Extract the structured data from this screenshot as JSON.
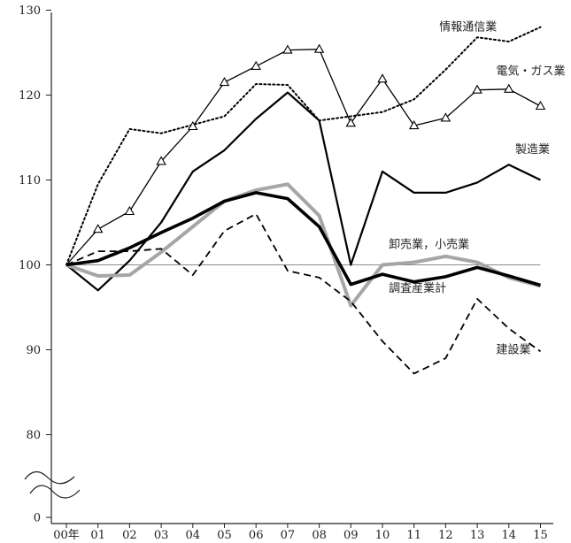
{
  "chart_data": {
    "type": "line",
    "title": "",
    "xlabel": "",
    "ylabel": "",
    "categories": [
      "00年",
      "01",
      "02",
      "03",
      "04",
      "05",
      "06",
      "07",
      "08",
      "09",
      "10",
      "11",
      "12",
      "13",
      "14",
      "15"
    ],
    "y_ticks": [
      "130",
      "120",
      "110",
      "100",
      "90",
      "80",
      "0"
    ],
    "ylim": [
      75,
      130
    ],
    "axis_break": true,
    "baseline": 100,
    "grid": false,
    "series": [
      {
        "name": "情報通信業",
        "style": "dotted",
        "color": "#000000",
        "values": [
          100,
          109.5,
          116,
          115.5,
          116.5,
          117.5,
          121.3,
          121.2,
          117,
          117.5,
          118,
          119.5,
          123,
          126.8,
          126.3,
          128
        ]
      },
      {
        "name": "電気・ガス業",
        "style": "thin-triangle",
        "color": "#000000",
        "values": [
          100,
          104.2,
          106.3,
          112.2,
          116.3,
          121.5,
          123.4,
          125.3,
          125.4,
          116.7,
          121.9,
          116.4,
          117.3,
          120.6,
          120.7,
          118.7
        ]
      },
      {
        "name": "製造業",
        "style": "solid-medium",
        "color": "#000000",
        "values": [
          100,
          97,
          100.5,
          105,
          111,
          113.5,
          117.2,
          120.3,
          117,
          100,
          111,
          108.5,
          108.5,
          109.7,
          111.8,
          110
        ]
      },
      {
        "name": "卸売業，小売業",
        "style": "gray-thick",
        "color": "#a6a6a6",
        "values": [
          100,
          98.7,
          98.8,
          101.5,
          104.5,
          107.5,
          108.8,
          109.5,
          105.8,
          95.2,
          100,
          100.3,
          101,
          100.3,
          98.5,
          97.5
        ]
      },
      {
        "name": "調査産業計",
        "style": "black-thick",
        "color": "#000000",
        "values": [
          100,
          100.5,
          102,
          103.8,
          105.5,
          107.5,
          108.5,
          107.8,
          104.5,
          97.7,
          98.9,
          98,
          98.6,
          99.7,
          98.7,
          97.6
        ]
      },
      {
        "name": "建設業",
        "style": "dashed",
        "color": "#000000",
        "values": [
          100,
          101.6,
          101.6,
          101.9,
          98.8,
          104,
          106,
          99.3,
          98.5,
          95.7,
          91,
          87.2,
          89,
          96,
          92.5,
          89.8
        ]
      }
    ],
    "label_anchor": {
      "情報通信業": [
        11.8,
        127.6
      ],
      "電気・ガス業": [
        13.6,
        122.4
      ],
      "製造業": [
        14.2,
        113.2
      ],
      "卸売業，小売業": [
        10.2,
        102
      ],
      "調査産業計": [
        10.2,
        96.8
      ],
      "建設業": [
        13.6,
        89.6
      ]
    }
  }
}
